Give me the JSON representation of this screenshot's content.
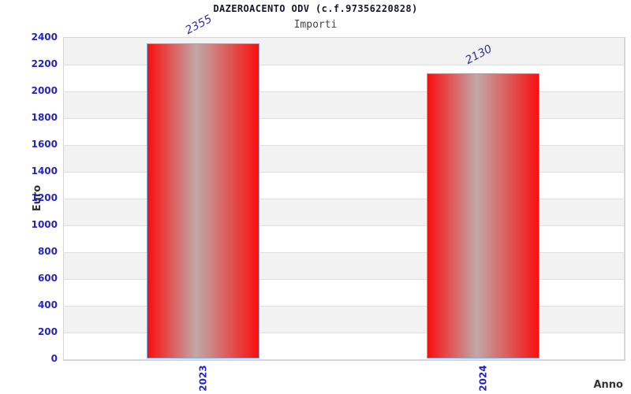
{
  "chart_data": {
    "type": "bar",
    "title": "DAZEROACENTO ODV (c.f.97356220828)",
    "subtitle": "Importi",
    "xlabel": "Anno",
    "ylabel": "Euro",
    "categories": [
      "2023",
      "2024"
    ],
    "values": [
      2355,
      2130
    ],
    "value_labels": [
      "2355",
      "2130"
    ],
    "ylim": [
      0,
      2400
    ],
    "yticks": [
      0,
      200,
      400,
      600,
      800,
      1000,
      1200,
      1400,
      1600,
      1800,
      2000,
      2200,
      2400
    ],
    "legend": "none",
    "grid": "alternating horizontal bands, gridline every 200",
    "colors": {
      "bar_red": "#f90f0f",
      "bar_center_sheen": "#c2a8a8",
      "bar_border": "#79b0e2",
      "ytick_label": "#2323c8",
      "xtick_label": "#2323c8",
      "value_label": "#32329a",
      "band_shaded": "#f2f2f2",
      "band_plain": "#ffffff",
      "gridline": "#e0e0e0",
      "plot_border": "#d6d6d6",
      "title": "#16162c",
      "subtitle": "#444444",
      "axis_title": "#333333",
      "background": "#ffffff"
    }
  }
}
